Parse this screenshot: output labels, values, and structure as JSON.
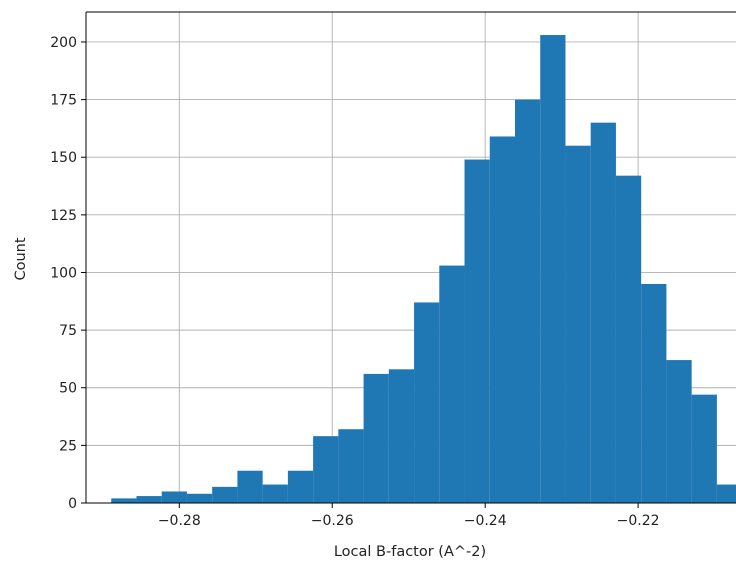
{
  "chart_data": {
    "type": "bar",
    "title": "",
    "xlabel": "Local B-factor (A^-2)",
    "ylabel": "Count",
    "xlim": [
      -0.2922,
      -0.2072
    ],
    "ylim": [
      0,
      213
    ],
    "grid": true,
    "bar_color": "#1f77b4",
    "bins": [
      {
        "x0": -0.2889,
        "x1": -0.2856,
        "count": 2
      },
      {
        "x0": -0.2856,
        "x1": -0.2823,
        "count": 3
      },
      {
        "x0": -0.2823,
        "x1": -0.279,
        "count": 5
      },
      {
        "x0": -0.279,
        "x1": -0.2757,
        "count": 4
      },
      {
        "x0": -0.2757,
        "x1": -0.2724,
        "count": 7
      },
      {
        "x0": -0.2724,
        "x1": -0.2691,
        "count": 14
      },
      {
        "x0": -0.2691,
        "x1": -0.2658,
        "count": 8
      },
      {
        "x0": -0.2658,
        "x1": -0.2625,
        "count": 14
      },
      {
        "x0": -0.2625,
        "x1": -0.2592,
        "count": 29
      },
      {
        "x0": -0.2592,
        "x1": -0.2559,
        "count": 32
      },
      {
        "x0": -0.2559,
        "x1": -0.2526,
        "count": 56
      },
      {
        "x0": -0.2526,
        "x1": -0.2493,
        "count": 58
      },
      {
        "x0": -0.2493,
        "x1": -0.246,
        "count": 87
      },
      {
        "x0": -0.246,
        "x1": -0.2427,
        "count": 103
      },
      {
        "x0": -0.2427,
        "x1": -0.2394,
        "count": 149
      },
      {
        "x0": -0.2394,
        "x1": -0.2361,
        "count": 159
      },
      {
        "x0": -0.2361,
        "x1": -0.2328,
        "count": 175
      },
      {
        "x0": -0.2328,
        "x1": -0.2295,
        "count": 203
      },
      {
        "x0": -0.2295,
        "x1": -0.2262,
        "count": 155
      },
      {
        "x0": -0.2262,
        "x1": -0.2229,
        "count": 165
      },
      {
        "x0": -0.2229,
        "x1": -0.2196,
        "count": 142
      },
      {
        "x0": -0.2196,
        "x1": -0.2163,
        "count": 95
      },
      {
        "x0": -0.2163,
        "x1": -0.213,
        "count": 62
      },
      {
        "x0": -0.213,
        "x1": -0.2097,
        "count": 47
      },
      {
        "x0": -0.2097,
        "x1": -0.2064,
        "count": 8
      }
    ],
    "x_ticks": [
      {
        "value": -0.28,
        "label": "−0.28"
      },
      {
        "value": -0.26,
        "label": "−0.26"
      },
      {
        "value": -0.24,
        "label": "−0.24"
      },
      {
        "value": -0.22,
        "label": "−0.22"
      }
    ],
    "y_ticks": [
      {
        "value": 0,
        "label": "0"
      },
      {
        "value": 25,
        "label": "25"
      },
      {
        "value": 50,
        "label": "50"
      },
      {
        "value": 75,
        "label": "75"
      },
      {
        "value": 100,
        "label": "100"
      },
      {
        "value": 125,
        "label": "125"
      },
      {
        "value": 150,
        "label": "150"
      },
      {
        "value": 175,
        "label": "175"
      },
      {
        "value": 200,
        "label": "200"
      }
    ]
  }
}
